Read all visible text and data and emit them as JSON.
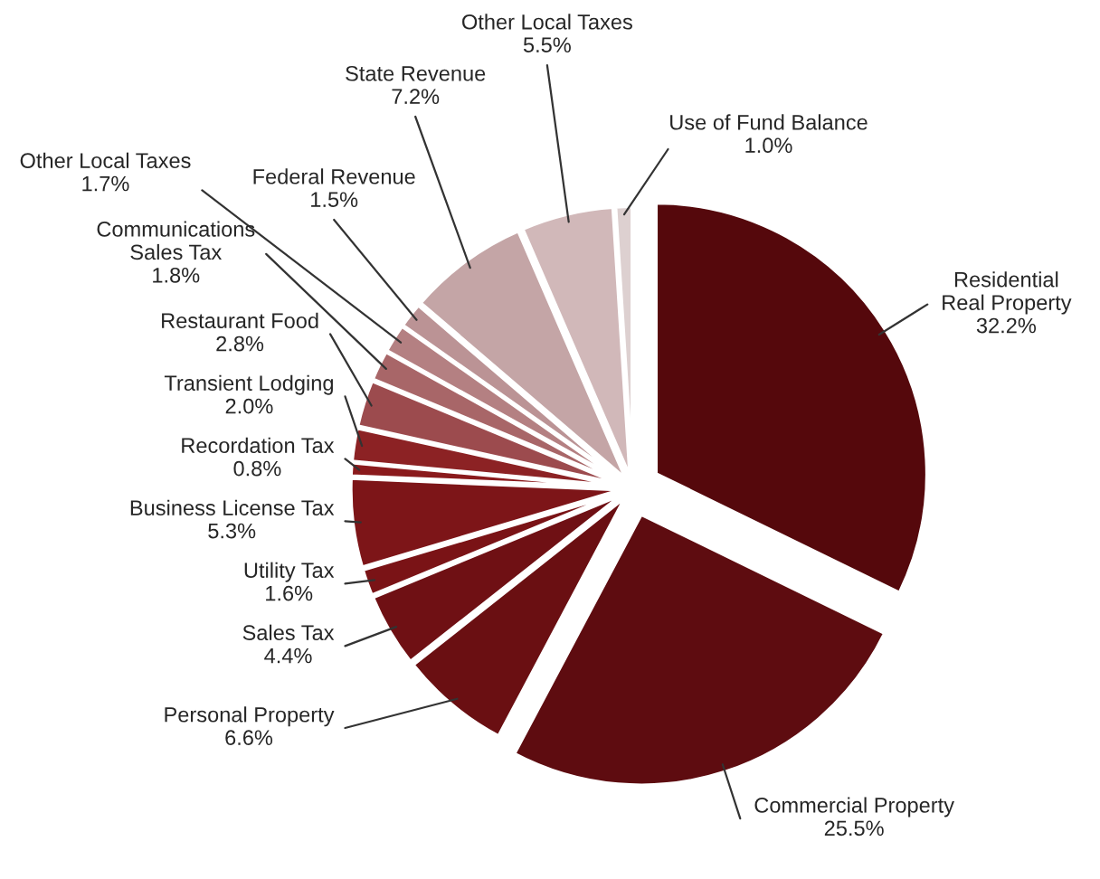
{
  "chart_data": {
    "type": "pie",
    "categories": [
      "Residential Real Property",
      "Commercial Property",
      "Personal Property",
      "Sales Tax",
      "Utility Tax",
      "Business License Tax",
      "Recordation Tax",
      "Transient Lodging",
      "Restaurant Food",
      "Communications Sales Tax",
      "Other Local Taxes",
      "Federal Revenue",
      "State Revenue",
      "Other Local Taxes",
      "Use of Fund Balance"
    ],
    "values": [
      32.2,
      25.5,
      6.6,
      4.4,
      1.6,
      5.3,
      0.8,
      2.0,
      2.8,
      1.8,
      1.7,
      1.5,
      7.2,
      5.5,
      1.0
    ],
    "value_labels": [
      "32.2%",
      "25.5%",
      "6.6%",
      "4.4%",
      "1.6%",
      "5.3%",
      "0.8%",
      "2.0%",
      "2.8%",
      "1.8%",
      "1.7%",
      "1.5%",
      "7.2%",
      "5.5%",
      "1.0%"
    ],
    "colors": [
      "#55080c",
      "#5e0c10",
      "#6a0f12",
      "#6f1014",
      "#7a1316",
      "#7d1518",
      "#8a1a1c",
      "#8c2224",
      "#9c4b4e",
      "#a86668",
      "#b48082",
      "#bb9395",
      "#c4a5a6",
      "#d1b8b9",
      "#ddd0d0"
    ]
  }
}
